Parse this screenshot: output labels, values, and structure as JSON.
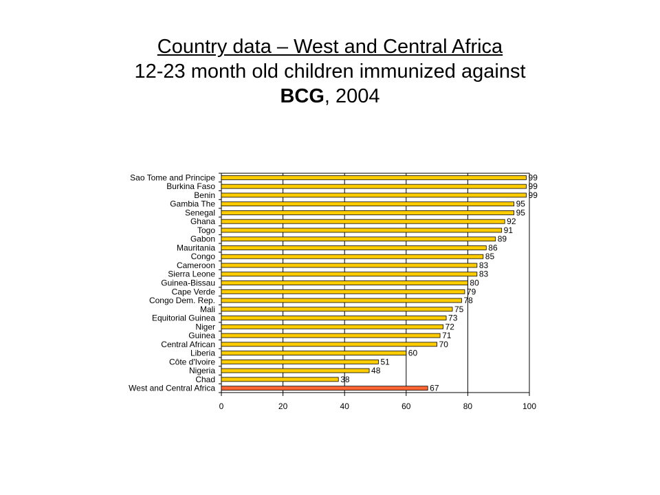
{
  "title": {
    "line1": "Country data – West and Central Africa",
    "line2": "12-23 month old children immunized against",
    "line3_bold": "BCG",
    "line3_rest": ", 2004"
  },
  "colors": {
    "bar": "#ffcc00",
    "bar_highlight": "#ff6633",
    "bar_stroke": "#000000"
  },
  "chart_data": {
    "type": "bar",
    "orientation": "horizontal",
    "categories": [
      "Sao Tome and Principe",
      "Burkina Faso",
      "Benin",
      "Gambia The",
      "Senegal",
      "Ghana",
      "Togo",
      "Gabon",
      "Mauritania",
      "Congo",
      "Cameroon",
      "Sierra Leone",
      "Guinea-Bissau",
      "Cape Verde",
      "Congo Dem. Rep.",
      "Mali",
      "Equitorial Guinea",
      "Niger",
      "Guinea",
      "Central African",
      "Liberia",
      "Côte d'Ivoire",
      "Nigeria",
      "Chad",
      "West and Central Africa"
    ],
    "values": [
      99,
      99,
      99,
      95,
      95,
      92,
      91,
      89,
      86,
      85,
      83,
      83,
      80,
      79,
      78,
      75,
      73,
      72,
      71,
      70,
      60,
      51,
      48,
      38,
      67
    ],
    "highlight_index": 24,
    "xlim": [
      0,
      100
    ],
    "xticks": [
      0,
      20,
      40,
      60,
      80,
      100
    ],
    "grid": "vertical",
    "data_labels": true
  }
}
